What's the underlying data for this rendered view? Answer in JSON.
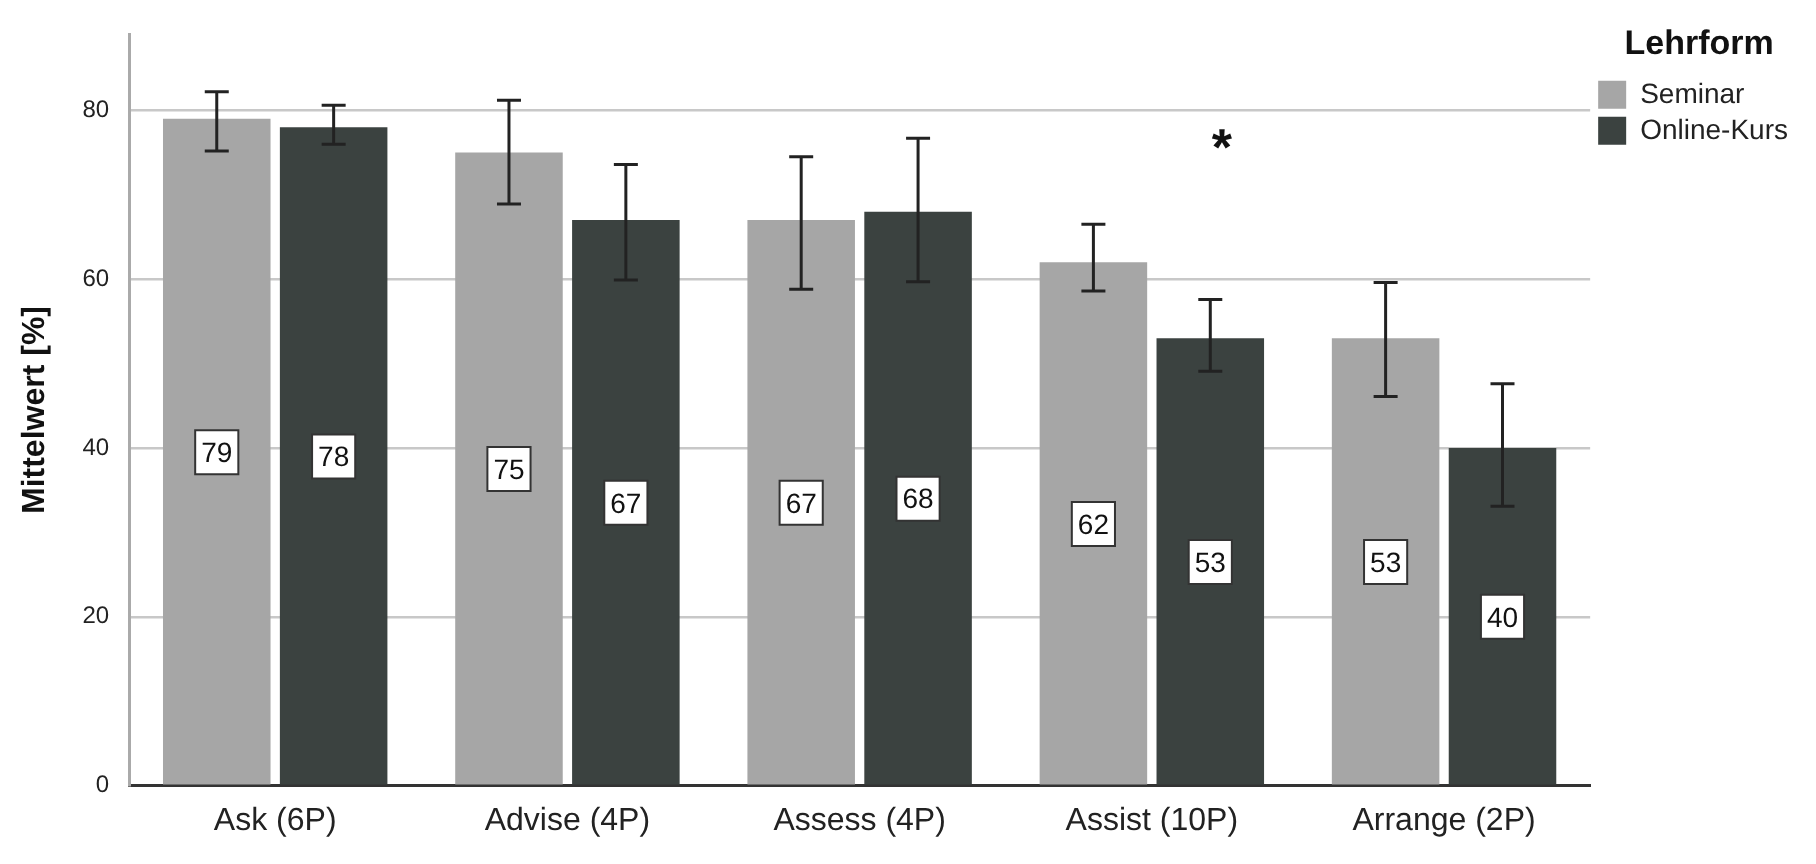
{
  "chart_data": {
    "type": "bar",
    "ylabel": "Mittelwert [%]",
    "legend_title": "Lehrform",
    "legend": "top right",
    "grid": "y",
    "data_labels": true,
    "categories": [
      "Ask (6P)",
      "Advise (4P)",
      "Assess (4P)",
      "Assist (10P)",
      "Arrange (2P)"
    ],
    "series": [
      {
        "name": "Seminar",
        "color": "#a6a6a6",
        "values": [
          79,
          75,
          67,
          62,
          53
        ],
        "errors": [
          [
            75.2,
            82.2
          ],
          [
            68.9,
            81.2
          ],
          [
            58.8,
            74.5
          ],
          [
            58.6,
            66.5
          ],
          [
            46.1,
            59.6
          ]
        ]
      },
      {
        "name": "Online-Kurs",
        "color": "#3b4240",
        "values": [
          78,
          67,
          68,
          53,
          40
        ],
        "errors": [
          [
            76.0,
            80.6
          ],
          [
            59.9,
            73.6
          ],
          [
            59.7,
            76.7
          ],
          [
            49.1,
            57.6
          ],
          [
            33.1,
            47.6
          ]
        ]
      }
    ],
    "ylim": [
      0,
      89
    ],
    "yticks": [
      0,
      20,
      40,
      60,
      80
    ],
    "annotations": [
      "*"
    ]
  }
}
